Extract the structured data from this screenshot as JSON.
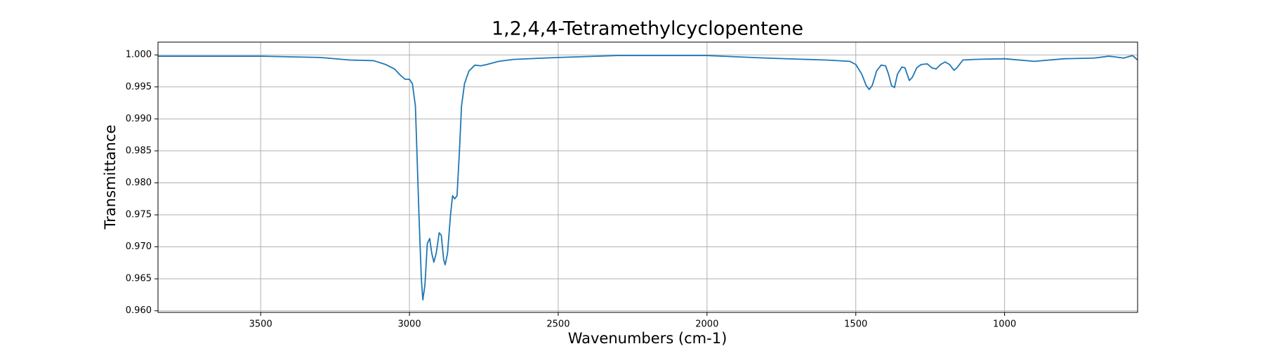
{
  "chart_data": {
    "type": "line",
    "title": "1,2,4,4-Tetramethylcyclopentene",
    "xlabel": "Wavenumbers (cm-1)",
    "ylabel": "Transmittance",
    "color": "#1f77b4",
    "grid": true,
    "xlim": [
      3845,
      553
    ],
    "ylim": [
      0.95975,
      1.002
    ],
    "xticks": [
      3500,
      3000,
      2500,
      2000,
      1500,
      1000
    ],
    "yticks": [
      {
        "value": 0.96,
        "label": "0.960"
      },
      {
        "value": 0.965,
        "label": "0.965"
      },
      {
        "value": 0.97,
        "label": "0.970"
      },
      {
        "value": 0.975,
        "label": "0.975"
      },
      {
        "value": 0.98,
        "label": "0.980"
      },
      {
        "value": 0.985,
        "label": "0.985"
      },
      {
        "value": 0.99,
        "label": "0.990"
      },
      {
        "value": 0.995,
        "label": "0.995"
      },
      {
        "value": 1.0,
        "label": "1.000"
      }
    ],
    "x": [
      3845,
      3700,
      3500,
      3300,
      3200,
      3120,
      3080,
      3050,
      3030,
      3015,
      3000,
      2990,
      2980,
      2975,
      2968,
      2960,
      2955,
      2948,
      2940,
      2932,
      2925,
      2918,
      2910,
      2900,
      2893,
      2885,
      2880,
      2872,
      2862,
      2855,
      2848,
      2840,
      2832,
      2825,
      2815,
      2800,
      2780,
      2760,
      2740,
      2700,
      2650,
      2500,
      2300,
      2000,
      1800,
      1600,
      1520,
      1500,
      1480,
      1465,
      1455,
      1445,
      1430,
      1415,
      1400,
      1390,
      1380,
      1370,
      1360,
      1345,
      1335,
      1320,
      1310,
      1295,
      1280,
      1260,
      1245,
      1230,
      1215,
      1200,
      1185,
      1170,
      1160,
      1140,
      1100,
      1000,
      900,
      800,
      700,
      650,
      630,
      600,
      570,
      553
    ],
    "values": [
      0.9998,
      0.9998,
      0.9998,
      0.9996,
      0.9992,
      0.9991,
      0.9985,
      0.9978,
      0.9968,
      0.9962,
      0.9962,
      0.9955,
      0.992,
      0.985,
      0.975,
      0.965,
      0.9617,
      0.964,
      0.9705,
      0.9713,
      0.969,
      0.9676,
      0.969,
      0.9722,
      0.9718,
      0.968,
      0.9672,
      0.969,
      0.975,
      0.978,
      0.9775,
      0.978,
      0.985,
      0.992,
      0.9955,
      0.9975,
      0.9984,
      0.9983,
      0.9985,
      0.999,
      0.9993,
      0.9996,
      0.9999,
      0.9999,
      0.9995,
      0.9992,
      0.999,
      0.9985,
      0.997,
      0.9952,
      0.9946,
      0.9952,
      0.9975,
      0.9984,
      0.9983,
      0.997,
      0.9952,
      0.9949,
      0.997,
      0.9981,
      0.998,
      0.996,
      0.9965,
      0.998,
      0.9985,
      0.9986,
      0.998,
      0.9978,
      0.9985,
      0.9989,
      0.9985,
      0.9976,
      0.998,
      0.9992,
      0.9993,
      0.9994,
      0.999,
      0.9994,
      0.9995,
      0.9998,
      0.9997,
      0.9995,
      0.9999,
      0.9992
    ]
  }
}
